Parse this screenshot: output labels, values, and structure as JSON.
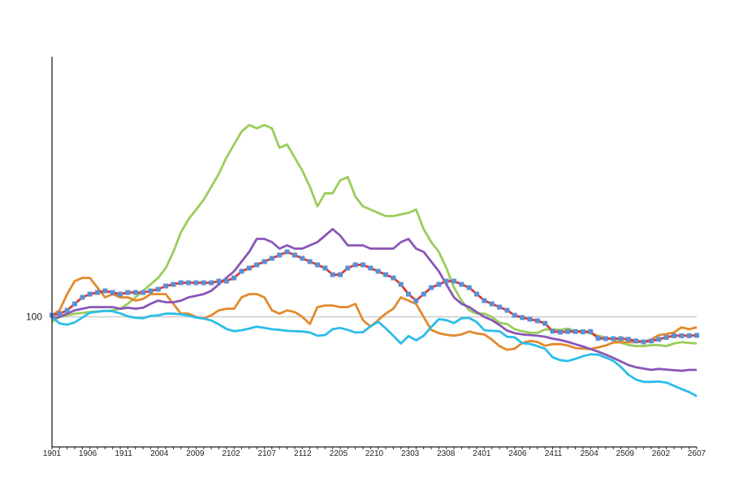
{
  "chart_data": {
    "type": "line",
    "title": "",
    "xlabel": "",
    "ylabel": "",
    "x_tick_labels": [
      "1901",
      "1906",
      "1911",
      "2004",
      "2009",
      "2102",
      "2107",
      "2112",
      "2205",
      "2210",
      "2303",
      "2308",
      "2401",
      "2406",
      "2411",
      "2504",
      "2509",
      "2602",
      "2607"
    ],
    "y_reference": {
      "value": 100,
      "label": "100",
      "color": "#cccccc"
    },
    "ylim": [
      60,
      180
    ],
    "legend": "none",
    "grid": false,
    "series": [
      {
        "color": "#9acd5a",
        "values": [
          98.5,
          100,
          100.5,
          101,
          101.2,
          101.5,
          101.7,
          101.8,
          102,
          102.5,
          104,
          106,
          108,
          110,
          112,
          115,
          120,
          126,
          130,
          133,
          136,
          140,
          144,
          149,
          153,
          157,
          159,
          158,
          159,
          158,
          152,
          153,
          149,
          145,
          140,
          134,
          138,
          138,
          142,
          143,
          137,
          134,
          133,
          132,
          131,
          131,
          131.5,
          132,
          133,
          127,
          123,
          120,
          115,
          109,
          105,
          102,
          101,
          101,
          100,
          98.2,
          97.8,
          96.2,
          95.6,
          95.1,
          95.1,
          96.1,
          96.1,
          96,
          96.4,
          95.6,
          95.6,
          94.9,
          94.2,
          93.6,
          93,
          92,
          91.4,
          91,
          91,
          91.3,
          91.3,
          91,
          91.8,
          92.2,
          92,
          91.8
        ]
      },
      {
        "color": "#e3892b",
        "values": [
          100.5,
          102,
          107,
          111,
          112,
          112,
          109,
          106,
          107,
          106,
          106,
          105,
          105.5,
          107,
          107,
          107,
          104,
          101,
          101,
          100,
          99.5,
          100.5,
          102,
          102.5,
          102.5,
          106,
          107,
          107,
          106,
          102,
          101,
          102,
          101.5,
          100,
          97.8,
          103,
          103.5,
          103.5,
          103,
          103,
          104,
          99,
          97,
          99,
          101,
          102.5,
          106,
          105,
          104,
          100,
          96,
          95,
          94.5,
          94.2,
          94.6,
          95.5,
          94.9,
          94.6,
          93,
          91,
          89.9,
          90.2,
          92,
          92.6,
          92.3,
          91.1,
          91.6,
          91.6,
          91.2,
          90.4,
          90.2,
          90.1,
          90.6,
          91.2,
          92.1,
          92.2,
          92.2,
          92.2,
          92.4,
          93,
          94.4,
          94.7,
          95.2,
          96.8,
          96.2,
          96.8
        ]
      },
      {
        "color": "#8a55b8",
        "values": [
          99.5,
          100,
          101,
          102,
          102.5,
          103,
          103,
          103,
          103,
          102.5,
          102.8,
          102.5,
          102.8,
          104,
          105,
          104.5,
          104.5,
          105,
          106,
          106.5,
          107,
          108,
          110,
          112,
          114,
          117,
          120,
          124,
          124,
          123,
          121,
          122,
          121,
          121,
          122,
          123,
          125,
          127,
          125,
          122,
          122,
          122,
          121,
          121,
          121,
          121,
          123,
          124,
          121,
          120,
          117,
          114,
          110,
          106,
          104,
          103,
          101.5,
          100,
          99,
          97.5,
          95.8,
          95,
          94.6,
          94.4,
          94.2,
          93.9,
          93.3,
          92.9,
          92.3,
          91.6,
          90.9,
          90.1,
          89.3,
          88.4,
          87.4,
          86.3,
          85.2,
          84.5,
          84.1,
          83.7,
          84,
          83.8,
          83.6,
          83.4,
          83.7,
          83.7
        ]
      },
      {
        "color": "#2bbde8",
        "values": [
          100,
          98,
          97.6,
          98.3,
          99.8,
          101.3,
          101.6,
          101.9,
          101.7,
          101.1,
          100.2,
          99.7,
          99.6,
          100.3,
          100.5,
          101,
          101,
          100.8,
          100.4,
          99.8,
          99.5,
          98.9,
          97.7,
          96.3,
          95.6,
          95.9,
          96.4,
          97,
          96.6,
          96.2,
          96,
          95.7,
          95.6,
          95.5,
          95.2,
          94.2,
          94.4,
          96.2,
          96.6,
          96,
          95.2,
          95.3,
          97.1,
          98.5,
          96.5,
          94.2,
          91.8,
          94.1,
          92.8,
          94.2,
          96.9,
          99.3,
          99,
          98.1,
          99.6,
          99.7,
          98.4,
          95.9,
          95.7,
          95.6,
          93.9,
          93.7,
          91.9,
          91.7,
          91,
          90.2,
          87.6,
          86.7,
          86.4,
          87.1,
          87.9,
          88.5,
          88.4,
          87.5,
          86.5,
          84.6,
          82.2,
          80.7,
          80,
          80,
          80.1,
          79.8,
          78.8,
          77.8,
          76.9,
          75.6
        ]
      },
      {
        "color": "#e8322a",
        "marker_color": "#5b8fd4",
        "values": [
          100.5,
          101,
          102,
          104,
          106,
          107,
          107.5,
          108,
          107.5,
          107,
          107.5,
          107.5,
          107.5,
          108,
          108.5,
          109.5,
          110,
          110.5,
          110.5,
          110.5,
          110.5,
          110.5,
          111,
          111,
          112,
          114,
          115,
          116,
          117,
          118,
          119,
          120,
          119,
          118,
          117,
          116,
          115,
          113,
          113,
          115,
          116,
          116,
          115,
          114,
          113,
          112,
          110,
          107,
          105,
          107,
          109,
          110,
          111,
          111,
          110,
          109,
          107,
          105,
          104,
          103,
          102,
          100.5,
          99.8,
          99.3,
          98.8,
          98,
          95.6,
          95.3,
          95.5,
          95.5,
          95.4,
          95.5,
          93.4,
          93.3,
          93.3,
          93.3,
          93.1,
          92.6,
          92.3,
          92.6,
          93.1,
          93.7,
          94.2,
          94.2,
          94.2,
          94.3
        ]
      }
    ]
  }
}
